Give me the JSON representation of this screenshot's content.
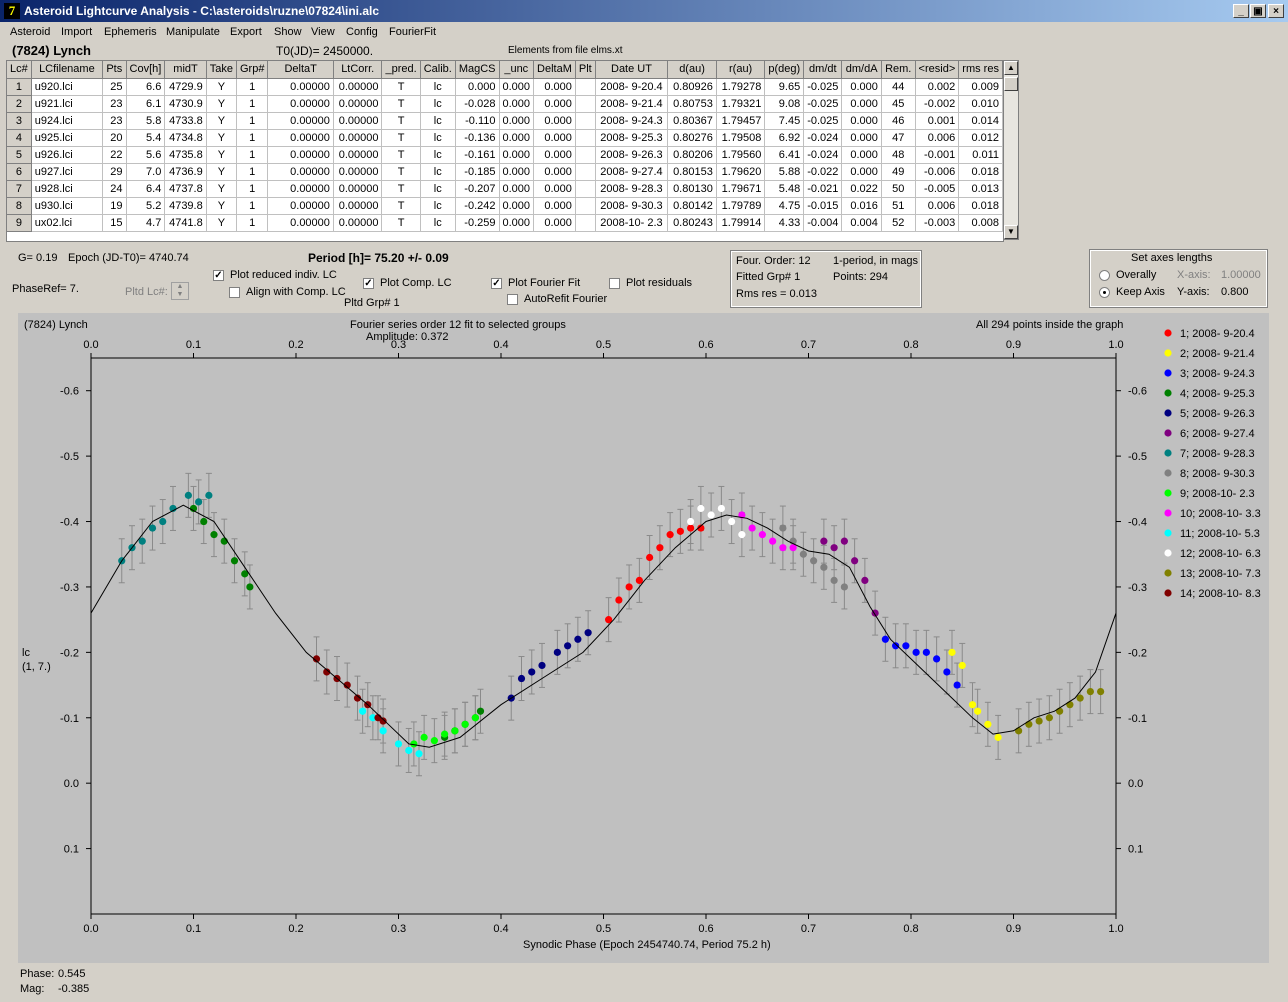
{
  "window": {
    "title": "Asteroid Lightcurve Analysis - C:\\asteroids\\ruzne\\07824\\ini.alc",
    "icon_letter": "7",
    "controls": [
      "_",
      "▣",
      "×"
    ]
  },
  "menu": [
    "Asteroid",
    "Import",
    "Ephemeris",
    "Manipulate",
    "Export",
    "Show",
    "View",
    "Config",
    "FourierFit"
  ],
  "header": {
    "object": "(7824) Lynch",
    "t0": "T0(JD)= 2450000.",
    "elements": "Elements from file elms.xt"
  },
  "table": {
    "columns": [
      "Lc#",
      "LCfilename",
      "Pts",
      "Cov[h]",
      "midT",
      "Take",
      "Grp#",
      "DeltaT",
      "LtCorr.",
      "_pred.",
      "Calib.",
      "MagCS",
      "_unc",
      "DeltaM",
      "Plt",
      "Date UT",
      "d(au)",
      "r(au)",
      "p(deg)",
      "dm/dt",
      "dm/dA",
      "Rem.",
      "<resid>",
      "rms res"
    ],
    "rows": [
      [
        "1",
        "u920.lci",
        "25",
        "6.6",
        "4729.9",
        "Y",
        "1",
        "0.00000",
        "0.00000",
        "T",
        "lc",
        "0.000",
        "0.000",
        "0.000",
        "",
        "2008- 9-20.4",
        "0.80926",
        "1.79278",
        "9.65",
        "-0.025",
        "0.000",
        "44",
        "0.002",
        "0.009"
      ],
      [
        "2",
        "u921.lci",
        "23",
        "6.1",
        "4730.9",
        "Y",
        "1",
        "0.00000",
        "0.00000",
        "T",
        "lc",
        "-0.028",
        "0.000",
        "0.000",
        "",
        "2008- 9-21.4",
        "0.80753",
        "1.79321",
        "9.08",
        "-0.025",
        "0.000",
        "45",
        "-0.002",
        "0.010"
      ],
      [
        "3",
        "u924.lci",
        "23",
        "5.8",
        "4733.8",
        "Y",
        "1",
        "0.00000",
        "0.00000",
        "T",
        "lc",
        "-0.110",
        "0.000",
        "0.000",
        "",
        "2008- 9-24.3",
        "0.80367",
        "1.79457",
        "7.45",
        "-0.025",
        "0.000",
        "46",
        "0.001",
        "0.014"
      ],
      [
        "4",
        "u925.lci",
        "20",
        "5.4",
        "4734.8",
        "Y",
        "1",
        "0.00000",
        "0.00000",
        "T",
        "lc",
        "-0.136",
        "0.000",
        "0.000",
        "",
        "2008- 9-25.3",
        "0.80276",
        "1.79508",
        "6.92",
        "-0.024",
        "0.000",
        "47",
        "0.006",
        "0.012"
      ],
      [
        "5",
        "u926.lci",
        "22",
        "5.6",
        "4735.8",
        "Y",
        "1",
        "0.00000",
        "0.00000",
        "T",
        "lc",
        "-0.161",
        "0.000",
        "0.000",
        "",
        "2008- 9-26.3",
        "0.80206",
        "1.79560",
        "6.41",
        "-0.024",
        "0.000",
        "48",
        "-0.001",
        "0.011"
      ],
      [
        "6",
        "u927.lci",
        "29",
        "7.0",
        "4736.9",
        "Y",
        "1",
        "0.00000",
        "0.00000",
        "T",
        "lc",
        "-0.185",
        "0.000",
        "0.000",
        "",
        "2008- 9-27.4",
        "0.80153",
        "1.79620",
        "5.88",
        "-0.022",
        "0.000",
        "49",
        "-0.006",
        "0.018"
      ],
      [
        "7",
        "u928.lci",
        "24",
        "6.4",
        "4737.8",
        "Y",
        "1",
        "0.00000",
        "0.00000",
        "T",
        "lc",
        "-0.207",
        "0.000",
        "0.000",
        "",
        "2008- 9-28.3",
        "0.80130",
        "1.79671",
        "5.48",
        "-0.021",
        "0.022",
        "50",
        "-0.005",
        "0.013"
      ],
      [
        "8",
        "u930.lci",
        "19",
        "5.2",
        "4739.8",
        "Y",
        "1",
        "0.00000",
        "0.00000",
        "T",
        "lc",
        "-0.242",
        "0.000",
        "0.000",
        "",
        "2008- 9-30.3",
        "0.80142",
        "1.79789",
        "4.75",
        "-0.015",
        "0.016",
        "51",
        "0.006",
        "0.018"
      ],
      [
        "9",
        "ux02.lci",
        "15",
        "4.7",
        "4741.8",
        "Y",
        "1",
        "0.00000",
        "0.00000",
        "T",
        "lc",
        "-0.259",
        "0.000",
        "0.000",
        "",
        "2008-10- 2.3",
        "0.80243",
        "1.79914",
        "4.33",
        "-0.004",
        "0.004",
        "52",
        "-0.003",
        "0.008"
      ]
    ]
  },
  "controls": {
    "g_label": "G= 0.19",
    "epoch_label": "Epoch (JD-T0)= 4740.74",
    "phase_ref": "PhaseRef= 7.",
    "pltd_lc": "Pltd Lc#:",
    "period": "Period [h]= 75.20 +/- 0.09",
    "pltd_grp": "Pltd Grp#  1",
    "plot_reduced": "Plot reduced indiv. LC",
    "align_comp": "Align with Comp. LC",
    "plot_comp": "Plot Comp. LC",
    "plot_fourier": "Plot Fourier Fit",
    "autorefit": "AutoRefit Fourier",
    "plot_residuals": "Plot residuals",
    "checked": {
      "plot_reduced": true,
      "align_comp": false,
      "plot_comp": true,
      "plot_fourier": true,
      "autorefit": false,
      "plot_residuals": false
    }
  },
  "fourier_info": {
    "order": "Four. Order: 12",
    "fitted": "Fitted Grp# 1",
    "rms": "Rms res     = 0.013",
    "period_note": "1-period, in mags",
    "points": "Points: 294"
  },
  "axes_box": {
    "title": "Set axes lengths",
    "overally": "Overally",
    "keep_axis": "Keep Axis",
    "x_label": "X-axis:",
    "x_value": "1.00000",
    "y_label": "Y-axis:",
    "y_value": "0.800",
    "selected": "Keep Axis"
  },
  "status": {
    "phase_label": "Phase:",
    "phase_value": "0.545",
    "mag_label": "Mag:",
    "mag_value": "-0.385"
  },
  "chart_data": {
    "type": "scatter",
    "title": "(7824) Lynch",
    "subtitle": "Fourier series order 12 fit to selected groups",
    "amplitude": "Amplitude: 0.372",
    "note": "All 294 points inside the graph",
    "xlabel": "Synodic Phase (Epoch 2454740.74, Period 75.2 h)",
    "ylabel_line1": "lc",
    "ylabel_line2": "(1, 7.)",
    "xlim": [
      0,
      1
    ],
    "ylim": [
      0.2,
      -0.65
    ],
    "y_inverted": true,
    "x_ticks": [
      "0.0",
      "0.1",
      "0.2",
      "0.3",
      "0.4",
      "0.5",
      "0.6",
      "0.7",
      "0.8",
      "0.9",
      "1.0"
    ],
    "y_ticks": [
      "-0.6",
      "-0.5",
      "-0.4",
      "-0.3",
      "-0.2",
      "-0.1",
      "0.0",
      "0.1"
    ],
    "y_tick_values": [
      -0.6,
      -0.5,
      -0.4,
      -0.3,
      -0.2,
      -0.1,
      0.0,
      0.1
    ],
    "fit_curve": [
      [
        0,
        -0.26
      ],
      [
        0.03,
        -0.34
      ],
      [
        0.06,
        -0.4
      ],
      [
        0.09,
        -0.425
      ],
      [
        0.12,
        -0.4
      ],
      [
        0.15,
        -0.33
      ],
      [
        0.18,
        -0.26
      ],
      [
        0.21,
        -0.2
      ],
      [
        0.24,
        -0.16
      ],
      [
        0.27,
        -0.12
      ],
      [
        0.29,
        -0.09
      ],
      [
        0.31,
        -0.06
      ],
      [
        0.33,
        -0.055
      ],
      [
        0.36,
        -0.07
      ],
      [
        0.4,
        -0.12
      ],
      [
        0.44,
        -0.16
      ],
      [
        0.48,
        -0.2
      ],
      [
        0.51,
        -0.25
      ],
      [
        0.54,
        -0.31
      ],
      [
        0.57,
        -0.36
      ],
      [
        0.6,
        -0.4
      ],
      [
        0.62,
        -0.41
      ],
      [
        0.64,
        -0.405
      ],
      [
        0.66,
        -0.39
      ],
      [
        0.68,
        -0.37
      ],
      [
        0.7,
        -0.355
      ],
      [
        0.72,
        -0.35
      ],
      [
        0.74,
        -0.33
      ],
      [
        0.76,
        -0.27
      ],
      [
        0.78,
        -0.22
      ],
      [
        0.8,
        -0.19
      ],
      [
        0.82,
        -0.16
      ],
      [
        0.84,
        -0.13
      ],
      [
        0.86,
        -0.1
      ],
      [
        0.88,
        -0.075
      ],
      [
        0.9,
        -0.08
      ],
      [
        0.92,
        -0.1
      ],
      [
        0.94,
        -0.11
      ],
      [
        0.96,
        -0.13
      ],
      [
        0.98,
        -0.17
      ],
      [
        1.0,
        -0.26
      ]
    ],
    "series": [
      {
        "name": "1; 2008- 9-20.4",
        "color": "#ff0000",
        "points": [
          [
            0.505,
            -0.25
          ],
          [
            0.515,
            -0.28
          ],
          [
            0.525,
            -0.3
          ],
          [
            0.535,
            -0.31
          ],
          [
            0.545,
            -0.345
          ],
          [
            0.555,
            -0.36
          ],
          [
            0.565,
            -0.38
          ],
          [
            0.575,
            -0.385
          ],
          [
            0.585,
            -0.39
          ],
          [
            0.595,
            -0.39
          ]
        ]
      },
      {
        "name": "2; 2008- 9-21.4",
        "color": "#ffff00",
        "points": [
          [
            0.84,
            -0.2
          ],
          [
            0.85,
            -0.18
          ],
          [
            0.86,
            -0.12
          ],
          [
            0.865,
            -0.11
          ],
          [
            0.875,
            -0.09
          ],
          [
            0.885,
            -0.07
          ]
        ]
      },
      {
        "name": "3; 2008- 9-24.3",
        "color": "#0000ff",
        "points": [
          [
            0.775,
            -0.22
          ],
          [
            0.785,
            -0.21
          ],
          [
            0.795,
            -0.21
          ],
          [
            0.805,
            -0.2
          ],
          [
            0.815,
            -0.2
          ],
          [
            0.825,
            -0.19
          ],
          [
            0.835,
            -0.17
          ],
          [
            0.845,
            -0.15
          ]
        ]
      },
      {
        "name": "4; 2008- 9-25.3",
        "color": "#008000",
        "points": [
          [
            0.345,
            -0.07
          ],
          [
            0.355,
            -0.08
          ],
          [
            0.365,
            -0.09
          ],
          [
            0.375,
            -0.1
          ],
          [
            0.38,
            -0.11
          ]
        ]
      },
      {
        "name": "5; 2008- 9-26.3",
        "color": "#000080",
        "points": [
          [
            0.41,
            -0.13
          ],
          [
            0.42,
            -0.16
          ],
          [
            0.43,
            -0.17
          ],
          [
            0.44,
            -0.18
          ],
          [
            0.455,
            -0.2
          ],
          [
            0.465,
            -0.21
          ],
          [
            0.475,
            -0.22
          ],
          [
            0.485,
            -0.23
          ]
        ]
      },
      {
        "name": "6; 2008- 9-27.4",
        "color": "#800080",
        "points": [
          [
            0.715,
            -0.37
          ],
          [
            0.725,
            -0.36
          ],
          [
            0.735,
            -0.37
          ],
          [
            0.745,
            -0.34
          ],
          [
            0.755,
            -0.31
          ],
          [
            0.765,
            -0.26
          ]
        ]
      },
      {
        "name": "7; 2008- 9-28.3",
        "color": "#008080",
        "points": [
          [
            0.03,
            -0.34
          ],
          [
            0.04,
            -0.36
          ],
          [
            0.05,
            -0.37
          ],
          [
            0.06,
            -0.39
          ],
          [
            0.07,
            -0.4
          ],
          [
            0.08,
            -0.42
          ],
          [
            0.095,
            -0.44
          ],
          [
            0.105,
            -0.43
          ],
          [
            0.115,
            -0.44
          ]
        ]
      },
      {
        "name": "8; 2008- 9-30.3",
        "color": "#808080",
        "points": [
          [
            0.675,
            -0.39
          ],
          [
            0.685,
            -0.37
          ],
          [
            0.695,
            -0.35
          ],
          [
            0.705,
            -0.34
          ],
          [
            0.715,
            -0.33
          ],
          [
            0.725,
            -0.31
          ],
          [
            0.735,
            -0.3
          ]
        ]
      },
      {
        "name": "9; 2008-10- 2.3",
        "color": "#00ff00",
        "points": [
          [
            0.315,
            -0.06
          ],
          [
            0.325,
            -0.07
          ],
          [
            0.335,
            -0.065
          ],
          [
            0.345,
            -0.075
          ],
          [
            0.355,
            -0.08
          ],
          [
            0.365,
            -0.09
          ],
          [
            0.375,
            -0.1
          ]
        ]
      },
      {
        "name": "10; 2008-10- 3.3",
        "color": "#ff00ff",
        "points": [
          [
            0.635,
            -0.41
          ],
          [
            0.645,
            -0.39
          ],
          [
            0.655,
            -0.38
          ],
          [
            0.665,
            -0.37
          ],
          [
            0.675,
            -0.36
          ],
          [
            0.685,
            -0.36
          ]
        ]
      },
      {
        "name": "11; 2008-10- 5.3",
        "color": "#00ffff",
        "points": [
          [
            0.265,
            -0.11
          ],
          [
            0.275,
            -0.1
          ],
          [
            0.285,
            -0.08
          ],
          [
            0.3,
            -0.06
          ],
          [
            0.31,
            -0.05
          ],
          [
            0.32,
            -0.045
          ]
        ]
      },
      {
        "name": "12; 2008-10- 6.3",
        "color": "#ffffff",
        "points": [
          [
            0.585,
            -0.4
          ],
          [
            0.595,
            -0.42
          ],
          [
            0.605,
            -0.41
          ],
          [
            0.615,
            -0.42
          ],
          [
            0.625,
            -0.4
          ],
          [
            0.635,
            -0.38
          ]
        ]
      },
      {
        "name": "13; 2008-10- 7.3",
        "color": "#808000",
        "points": [
          [
            0.905,
            -0.08
          ],
          [
            0.915,
            -0.09
          ],
          [
            0.925,
            -0.095
          ],
          [
            0.935,
            -0.1
          ],
          [
            0.945,
            -0.11
          ],
          [
            0.955,
            -0.12
          ],
          [
            0.965,
            -0.13
          ],
          [
            0.975,
            -0.14
          ],
          [
            0.985,
            -0.14
          ]
        ]
      },
      {
        "name": "14; 2008-10- 8.3",
        "color": "#800000",
        "points": [
          [
            0.22,
            -0.19
          ],
          [
            0.23,
            -0.17
          ],
          [
            0.24,
            -0.16
          ],
          [
            0.25,
            -0.15
          ],
          [
            0.26,
            -0.13
          ],
          [
            0.27,
            -0.12
          ],
          [
            0.28,
            -0.1
          ],
          [
            0.285,
            -0.095
          ]
        ]
      },
      {
        "name": "",
        "color": "#008000",
        "points": [
          [
            0.1,
            -0.42
          ],
          [
            0.11,
            -0.4
          ],
          [
            0.12,
            -0.38
          ],
          [
            0.13,
            -0.37
          ],
          [
            0.14,
            -0.34
          ],
          [
            0.15,
            -0.32
          ],
          [
            0.155,
            -0.3
          ]
        ]
      }
    ]
  }
}
